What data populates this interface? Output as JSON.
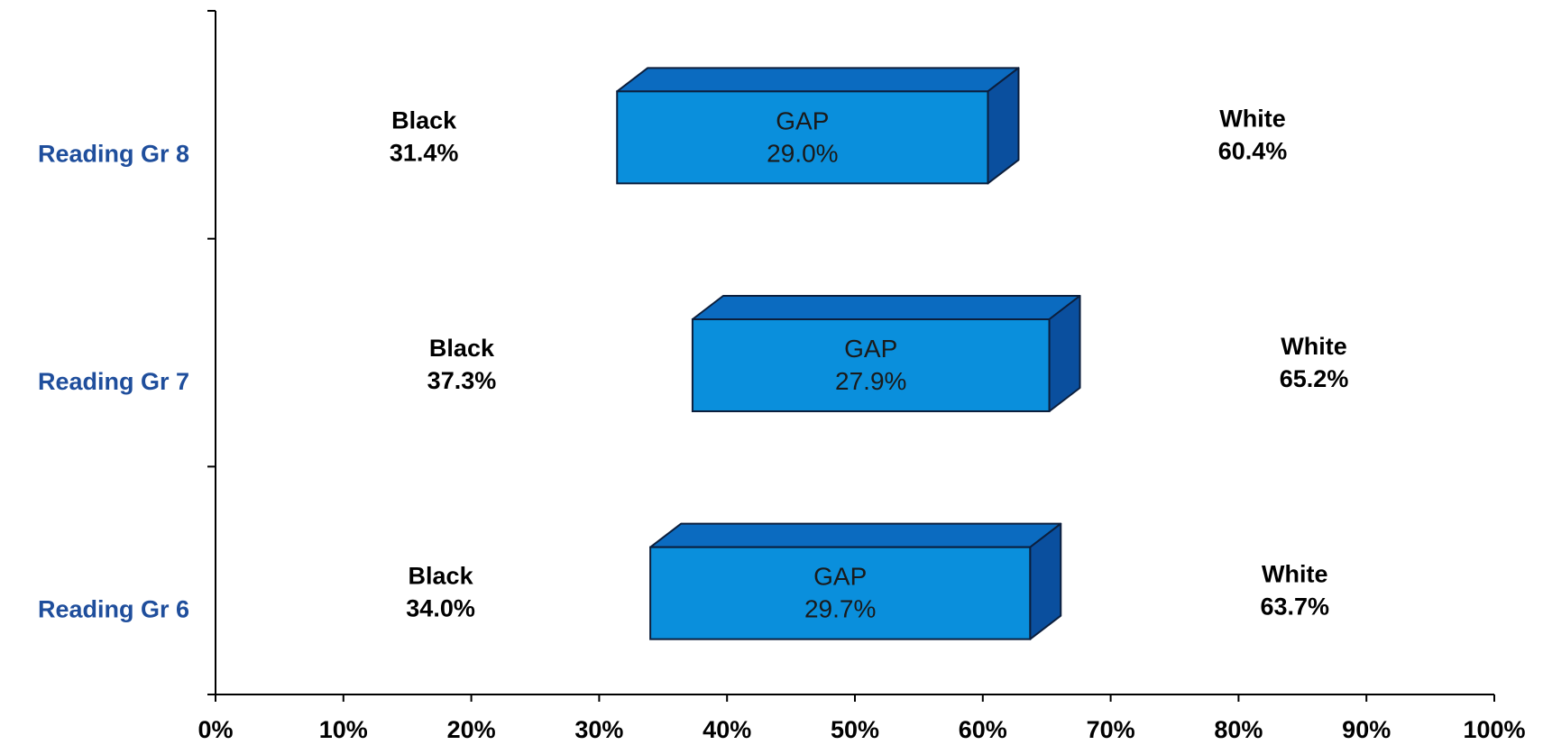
{
  "chart_data": {
    "type": "bar",
    "subtype": "floating-range-3d",
    "categories": [
      "Reading Gr 8",
      "Reading Gr 7",
      "Reading Gr 6"
    ],
    "series": [
      {
        "name": "Black",
        "values": [
          31.4,
          37.3,
          34.0
        ],
        "labels": [
          "31.4%",
          "37.3%",
          "34.0%"
        ]
      },
      {
        "name": "GAP",
        "values": [
          29.0,
          27.9,
          29.7
        ],
        "labels": [
          "29.0%",
          "27.9%",
          "29.7%"
        ]
      },
      {
        "name": "White",
        "values": [
          60.4,
          65.2,
          63.7
        ],
        "labels": [
          "60.4%",
          "65.2%",
          "63.7%"
        ]
      }
    ],
    "xlim": [
      0,
      100
    ],
    "x_ticks": [
      "0%",
      "10%",
      "20%",
      "30%",
      "40%",
      "50%",
      "60%",
      "70%",
      "80%",
      "90%",
      "100%"
    ],
    "title": "",
    "xlabel": "",
    "ylabel": "",
    "grid": false,
    "legend": "none",
    "colors": {
      "bar_front": "#0a8fdc",
      "bar_top": "#0b6bc0",
      "bar_side": "#0a4f9e",
      "bar_edge": "#0c1f3d",
      "category_text": "#1f4e9c",
      "axis": "#000000"
    }
  }
}
